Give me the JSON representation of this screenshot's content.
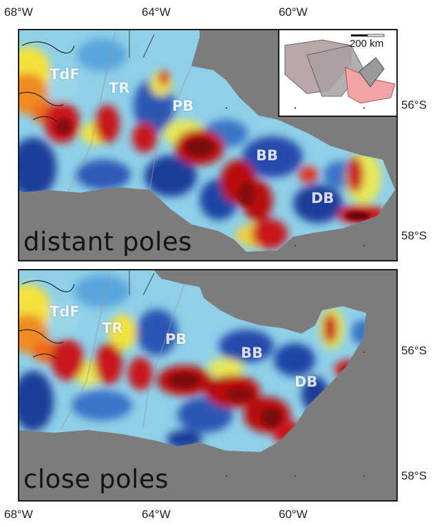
{
  "axes": {
    "top_lon_labels": [
      "68°W",
      "64°W",
      "60°W"
    ],
    "bottom_lon_labels": [
      "68°W",
      "64°W",
      "60°W"
    ],
    "top_panel_lat_labels": [
      "56°S",
      "58°S"
    ],
    "bottom_panel_lat_labels": [
      "56°S",
      "58°S"
    ]
  },
  "panels": [
    {
      "label": "distant poles",
      "regions": [
        "TdF",
        "TR",
        "PB",
        "BB",
        "DB"
      ]
    },
    {
      "label": "close poles",
      "regions": [
        "TdF",
        "TR",
        "PB",
        "BB",
        "DB"
      ]
    }
  ],
  "inset": {
    "scale_label": "200 km"
  },
  "colors": {
    "background": "#7d7c7d",
    "high": "#b80f10",
    "low": "#1c3c9a",
    "mid": "#8fd0e8",
    "yellow": "#f3e23c",
    "orange": "#ef8b22"
  }
}
